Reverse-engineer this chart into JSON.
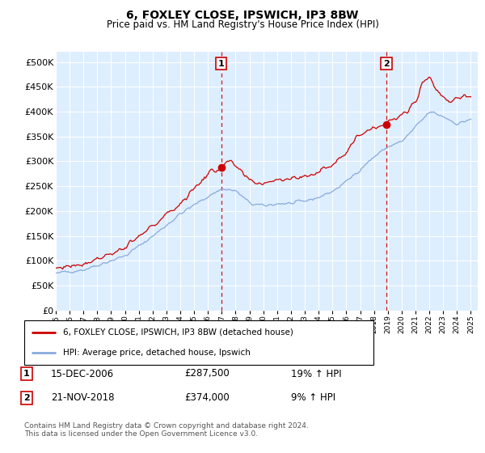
{
  "title": "6, FOXLEY CLOSE, IPSWICH, IP3 8BW",
  "subtitle": "Price paid vs. HM Land Registry's House Price Index (HPI)",
  "ytick_values": [
    0,
    50000,
    100000,
    150000,
    200000,
    250000,
    300000,
    350000,
    400000,
    450000,
    500000
  ],
  "ylim": [
    0,
    520000
  ],
  "xlim_start": 1995.0,
  "xlim_end": 2025.5,
  "bg_color": "#ddeeff",
  "grid_color": "#ffffff",
  "red_color": "#cc0000",
  "blue_color": "#88aadd",
  "transaction1_x": 2006.96,
  "transaction1_y": 287500,
  "transaction2_x": 2018.9,
  "transaction2_y": 374000,
  "legend_label1": "6, FOXLEY CLOSE, IPSWICH, IP3 8BW (detached house)",
  "legend_label2": "HPI: Average price, detached house, Ipswich",
  "note1_date": "15-DEC-2006",
  "note1_price": "£287,500",
  "note1_hpi": "19% ↑ HPI",
  "note2_date": "21-NOV-2018",
  "note2_price": "£374,000",
  "note2_hpi": "9% ↑ HPI",
  "footer": "Contains HM Land Registry data © Crown copyright and database right 2024.\nThis data is licensed under the Open Government Licence v3.0."
}
